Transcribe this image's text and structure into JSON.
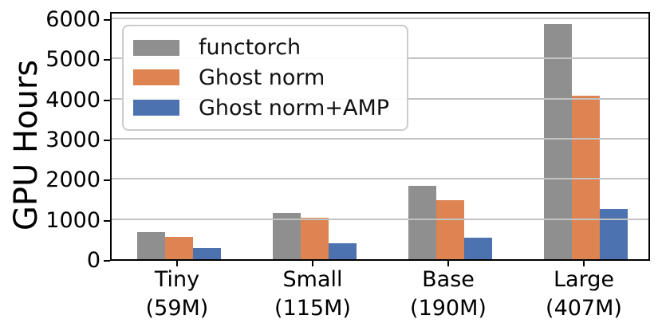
{
  "chart_data": {
    "type": "bar",
    "title": "",
    "xlabel": "",
    "ylabel": "GPU Hours",
    "categories": [
      {
        "label": "Tiny",
        "sublabel": "(59M)"
      },
      {
        "label": "Small",
        "sublabel": "(115M)"
      },
      {
        "label": "Base",
        "sublabel": "(190M)"
      },
      {
        "label": "Large",
        "sublabel": "(407M)"
      }
    ],
    "series": [
      {
        "name": "functorch",
        "color": "#8f8f8f",
        "values": [
          670,
          1150,
          1820,
          5870
        ]
      },
      {
        "name": "Ghost norm",
        "color": "#dd8452",
        "values": [
          550,
          1040,
          1480,
          4080
        ]
      },
      {
        "name": "Ghost norm+AMP",
        "color": "#4c72b0",
        "values": [
          270,
          400,
          540,
          1250
        ]
      }
    ],
    "yticks": [
      0,
      1000,
      2000,
      3000,
      4000,
      5000,
      6000
    ],
    "ylim": [
      0,
      6200
    ],
    "grid": "horizontal",
    "grid_color": "#c3c3c3",
    "axis_color": "#000000",
    "legend_position": "upper-left"
  }
}
